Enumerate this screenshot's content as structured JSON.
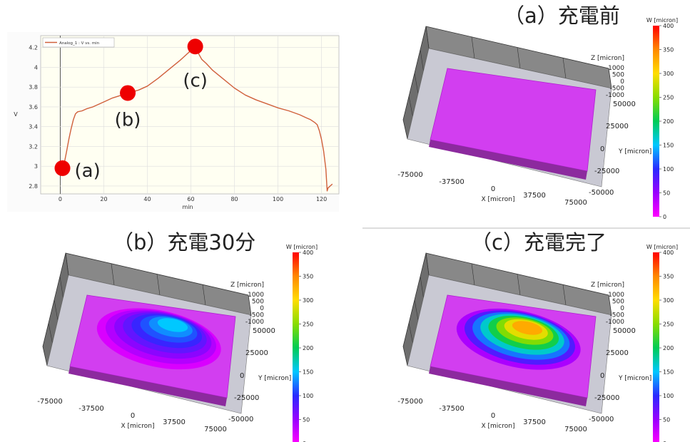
{
  "chart_data": [
    {
      "type": "line",
      "title": "",
      "xlabel": "min",
      "ylabel": "V",
      "legend": "Analog_1 : V vs. min",
      "legend_position": "top-left",
      "grid": true,
      "xlim": [
        -9,
        128
      ],
      "ylim": [
        2.72,
        4.32
      ],
      "xticks": [
        "0",
        "20",
        "40",
        "60",
        "80",
        "100",
        "120"
      ],
      "yticks": [
        "2.8",
        "3",
        "3.2",
        "3.4",
        "3.6",
        "3.8",
        "4",
        "4.2"
      ],
      "series": [
        {
          "name": "Analog_1 : V vs. min",
          "color": "#d0603c",
          "x": [
            1,
            1.5,
            2,
            3,
            4,
            5,
            6,
            7,
            8,
            10,
            12,
            15,
            18,
            21,
            24,
            27,
            30,
            33,
            36,
            40,
            45,
            50,
            55,
            58,
            60,
            61,
            62,
            63,
            64,
            65,
            67,
            70,
            75,
            80,
            85,
            90,
            95,
            100,
            105,
            110,
            113,
            115,
            117,
            118,
            119,
            120,
            121,
            122,
            122.6,
            123,
            124,
            125
          ],
          "y": [
            2.98,
            3.0,
            3.05,
            3.16,
            3.28,
            3.38,
            3.47,
            3.53,
            3.55,
            3.56,
            3.58,
            3.6,
            3.63,
            3.66,
            3.69,
            3.71,
            3.73,
            3.75,
            3.77,
            3.81,
            3.89,
            3.98,
            4.07,
            4.13,
            4.17,
            4.19,
            4.21,
            4.16,
            4.12,
            4.08,
            4.04,
            3.97,
            3.88,
            3.79,
            3.72,
            3.67,
            3.63,
            3.59,
            3.56,
            3.52,
            3.49,
            3.47,
            3.44,
            3.42,
            3.36,
            3.27,
            3.15,
            2.97,
            2.75,
            2.78,
            2.8,
            2.82
          ]
        }
      ],
      "annotations": [
        {
          "label": "(a)",
          "x": 1,
          "y": 2.98
        },
        {
          "label": "(b)",
          "x": 31,
          "y": 3.74
        },
        {
          "label": "(c)",
          "x": 62,
          "y": 4.21
        }
      ]
    },
    {
      "type": "heatmap",
      "title": "（a）充電前",
      "xlabel": "X [micron]",
      "ylabel": "Y [micron]",
      "zlabel": "Z [micron]",
      "colorbar_label": "W [micron]",
      "xticks": [
        "-75000",
        "-37500",
        "0",
        "37500",
        "75000"
      ],
      "yticks": [
        "50000",
        "25000",
        "0",
        "-25000",
        "-50000"
      ],
      "zticks": [
        "1000",
        "500",
        "0",
        "-500",
        "-1000"
      ],
      "colorbar_ticks": [
        "400",
        "350",
        "300",
        "250",
        "200",
        "150",
        "100",
        "50",
        "0"
      ],
      "peak_w": 5
    },
    {
      "type": "heatmap",
      "title": "（b）充電30分",
      "xlabel": "X [micron]",
      "ylabel": "Y [micron]",
      "zlabel": "Z [micron]",
      "colorbar_label": "W [micron]",
      "xticks": [
        "-75000",
        "-37500",
        "0",
        "37500",
        "75000"
      ],
      "yticks": [
        "50000",
        "25000",
        "0",
        "-25000",
        "-50000"
      ],
      "zticks": [
        "1000",
        "500",
        "0",
        "-500",
        "-1000"
      ],
      "colorbar_ticks": [
        "400",
        "350",
        "300",
        "250",
        "200",
        "150",
        "100",
        "50",
        "0"
      ],
      "peak_w": 150
    },
    {
      "type": "heatmap",
      "title": "（c）充電完了",
      "xlabel": "X [micron]",
      "ylabel": "Y [micron]",
      "zlabel": "Z [micron]",
      "colorbar_label": "W [micron]",
      "xticks": [
        "-75000",
        "-37500",
        "0",
        "37500",
        "75000"
      ],
      "yticks": [
        "50000",
        "25000",
        "0",
        "-25000",
        "-50000"
      ],
      "zticks": [
        "1000",
        "500",
        "0",
        "-500",
        "-1000"
      ],
      "colorbar_ticks": [
        "400",
        "350",
        "300",
        "250",
        "200",
        "150",
        "100",
        "50",
        "0"
      ],
      "peak_w": 330
    }
  ]
}
